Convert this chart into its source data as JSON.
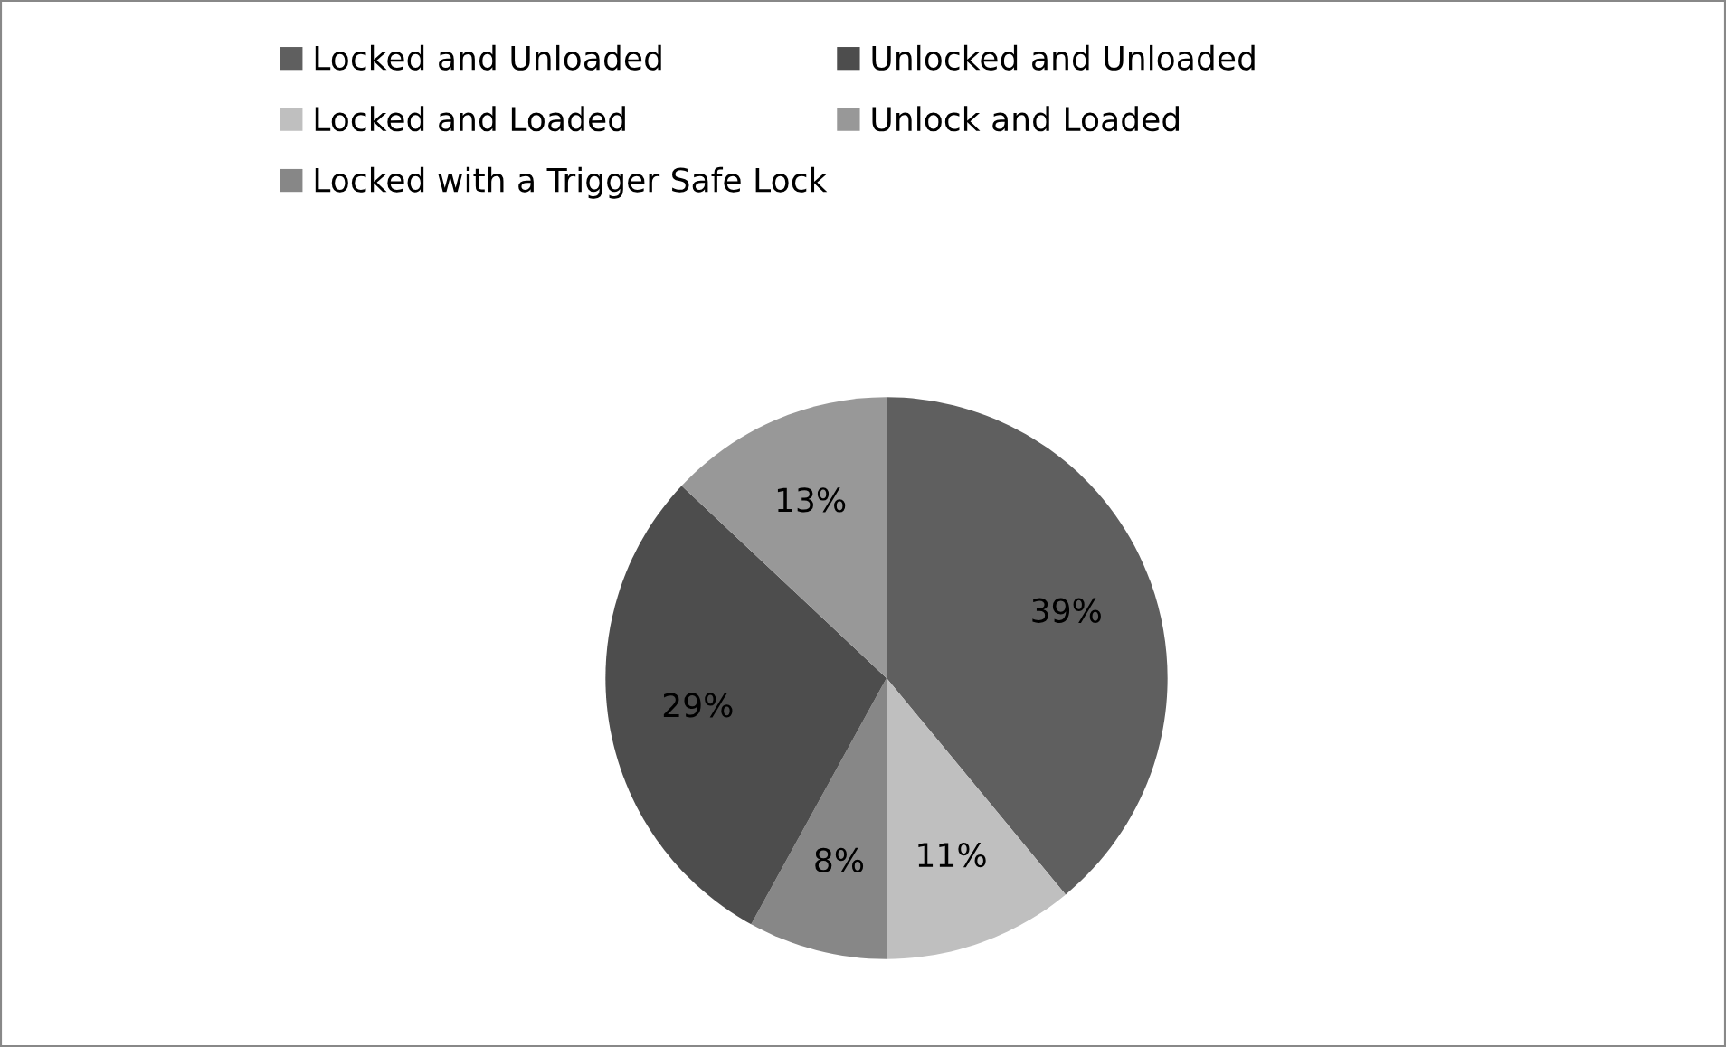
{
  "chart_data": {
    "type": "pie",
    "categories": [
      "Locked and Unloaded",
      "Locked and Loaded",
      "Locked with a Trigger Safe Lock",
      "Unlocked and Unloaded",
      "Unlock and Loaded"
    ],
    "values": [
      39,
      11,
      8,
      29,
      13
    ],
    "colors": [
      "#5f5f5f",
      "#bfbfbf",
      "#878787",
      "#4d4d4d",
      "#989898"
    ],
    "value_labels": [
      "39%",
      "11%",
      "8%",
      "29%",
      "13%"
    ],
    "legend": "top"
  }
}
